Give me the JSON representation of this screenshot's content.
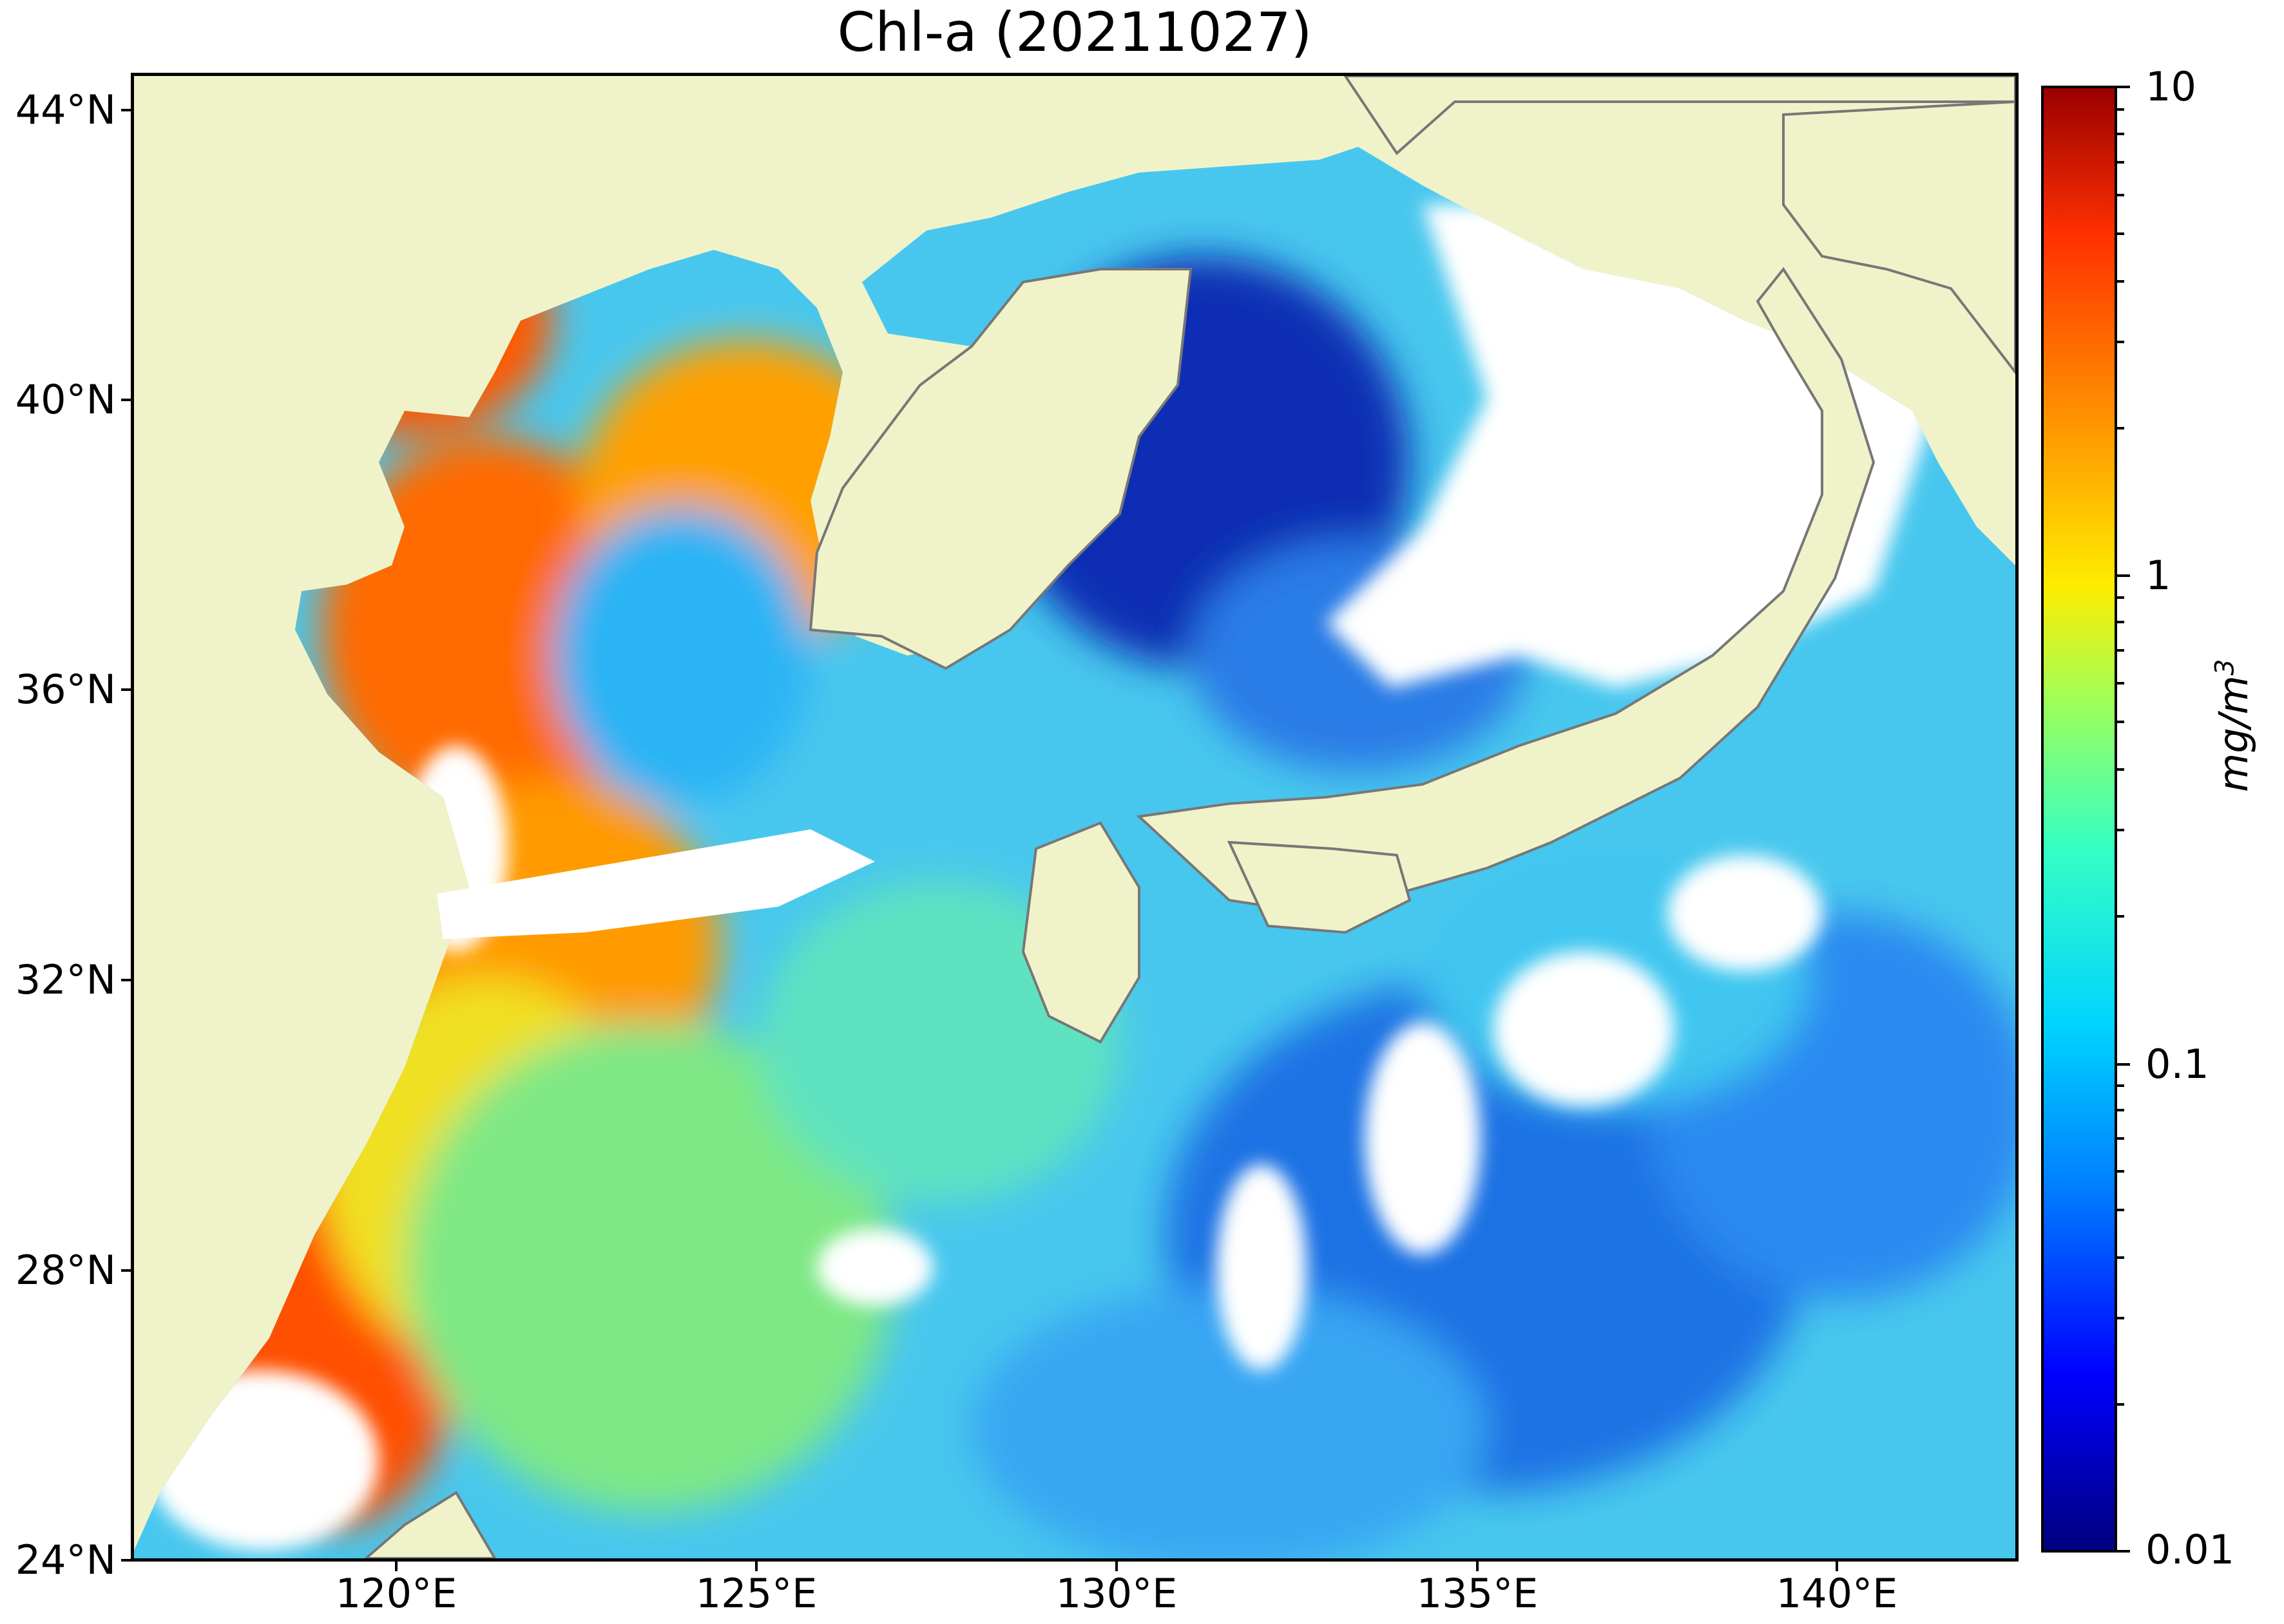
{
  "title": "Chl-a (20211027)",
  "map": {
    "type": "raster-map",
    "variable": "Chl-a",
    "date": "20211027",
    "land_color": "#f0f3c9",
    "no_data_color": "#ffffff",
    "coastline_color": "#777777",
    "lat_ticks": [
      {
        "label": "44°N"
      },
      {
        "label": "40°N"
      },
      {
        "label": "36°N"
      },
      {
        "label": "32°N"
      },
      {
        "label": "28°N"
      },
      {
        "label": "24°N"
      }
    ],
    "lon_ticks": [
      {
        "label": "120°E"
      },
      {
        "label": "125°E"
      },
      {
        "label": "130°E"
      },
      {
        "label": "135°E"
      },
      {
        "label": "140°E"
      }
    ]
  },
  "colorbar": {
    "scale": "log",
    "colormap": "jet",
    "range": [
      0.01,
      10
    ],
    "ticks": [
      {
        "label": "10"
      },
      {
        "label": "1"
      },
      {
        "label": "0.1"
      },
      {
        "label": "0.01"
      }
    ],
    "unit_base": "mg/m",
    "unit_exp": "3"
  }
}
